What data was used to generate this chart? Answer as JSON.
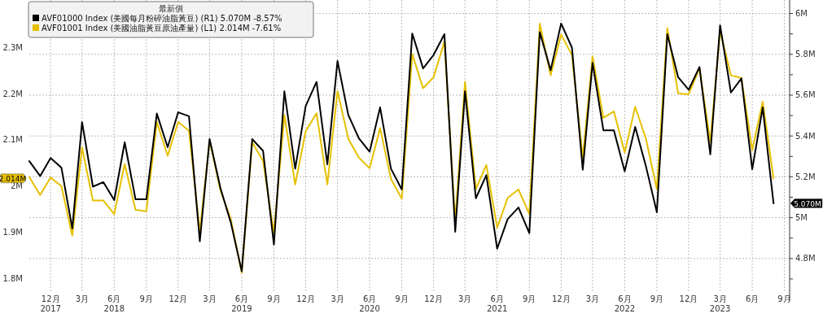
{
  "chart_data": {
    "type": "line",
    "legend_title": "最新價",
    "annotations": [
      "5.070M",
      "2.014M"
    ],
    "x": [
      "2017-10",
      "2017-11",
      "2017-12",
      "2018-01",
      "2018-02",
      "2018-03",
      "2018-04",
      "2018-05",
      "2018-06",
      "2018-07",
      "2018-08",
      "2018-09",
      "2018-10",
      "2018-11",
      "2018-12",
      "2019-01",
      "2019-02",
      "2019-03",
      "2019-04",
      "2019-05",
      "2019-06",
      "2019-07",
      "2019-08",
      "2019-09",
      "2019-10",
      "2019-11",
      "2019-12",
      "2020-01",
      "2020-02",
      "2020-03",
      "2020-04",
      "2020-05",
      "2020-06",
      "2020-07",
      "2020-08",
      "2020-09",
      "2020-10",
      "2020-11",
      "2020-12",
      "2021-01",
      "2021-02",
      "2021-03",
      "2021-04",
      "2021-05",
      "2021-06",
      "2021-07",
      "2021-08",
      "2021-09",
      "2021-10",
      "2021-11",
      "2021-12",
      "2022-01",
      "2022-02",
      "2022-03",
      "2022-04",
      "2022-05",
      "2022-06",
      "2022-07",
      "2022-08",
      "2022-09",
      "2022-10",
      "2022-11",
      "2022-12",
      "2023-01",
      "2023-02",
      "2023-03",
      "2023-04",
      "2023-05",
      "2023-06",
      "2023-07",
      "2023-08"
    ],
    "series": [
      {
        "name": "AVF01000 Index (美國每月粉碎油脂黃豆) (R1) 5.070M -8.57%",
        "color": "#000000",
        "axis": "y2",
        "values": [
          5.277,
          5.204,
          5.292,
          5.244,
          4.947,
          5.468,
          5.152,
          5.174,
          5.086,
          5.369,
          5.09,
          5.09,
          5.51,
          5.345,
          5.516,
          5.497,
          4.884,
          5.385,
          5.145,
          4.974,
          4.737,
          5.385,
          5.327,
          4.868,
          5.619,
          5.24,
          5.547,
          5.665,
          5.261,
          5.767,
          5.503,
          5.389,
          5.323,
          5.54,
          5.24,
          5.138,
          5.902,
          5.731,
          5.797,
          5.899,
          4.931,
          5.619,
          5.095,
          5.208,
          4.848,
          4.993,
          5.05,
          4.924,
          5.909,
          5.722,
          5.951,
          5.833,
          5.235,
          5.758,
          5.428,
          5.428,
          5.227,
          5.445,
          5.25,
          5.026,
          5.899,
          5.688,
          5.626,
          5.738,
          5.31,
          5.942,
          5.613,
          5.682,
          5.237,
          5.54,
          5.07
        ]
      },
      {
        "name": "AVF01001 Index (美國油脂黃豆原油產量) (L1) 2.014M -7.61%",
        "color": "#e6c000",
        "values": [
          2.017,
          1.978,
          2.016,
          1.997,
          1.89,
          2.081,
          1.966,
          1.966,
          1.937,
          2.045,
          1.946,
          1.943,
          2.136,
          2.063,
          2.136,
          2.117,
          1.899,
          2.096,
          1.988,
          1.925,
          1.81,
          2.092,
          2.052,
          1.896,
          2.151,
          2.001,
          2.116,
          2.155,
          2.001,
          2.203,
          2.1,
          2.059,
          2.036,
          2.123,
          2.013,
          1.97,
          2.283,
          2.209,
          2.233,
          2.31,
          1.922,
          2.223,
          1.991,
          2.043,
          1.907,
          1.972,
          1.99,
          1.937,
          2.349,
          2.237,
          2.325,
          2.281,
          2.058,
          2.278,
          2.145,
          2.159,
          2.07,
          2.169,
          2.099,
          1.991,
          2.339,
          2.198,
          2.196,
          2.252,
          2.093,
          2.333,
          2.237,
          2.231,
          2.075,
          2.18,
          2.014
        ]
      }
    ],
    "xlim": [
      "2017-10-01",
      "2023-09-16"
    ],
    "xticks": [
      {
        "value": "2017-12",
        "label": "12月\n2017"
      },
      {
        "value": "2018-03",
        "label": "3月"
      },
      {
        "value": "2018-06",
        "label": "6月\n2018"
      },
      {
        "value": "2018-09",
        "label": "9月"
      },
      {
        "value": "2018-12",
        "label": "12月"
      },
      {
        "value": "2019-03",
        "label": "3月"
      },
      {
        "value": "2019-06",
        "label": "6月\n2019"
      },
      {
        "value": "2019-09",
        "label": "9月"
      },
      {
        "value": "2019-12",
        "label": "12月"
      },
      {
        "value": "2020-03",
        "label": "3月"
      },
      {
        "value": "2020-06",
        "label": "6月\n2020"
      },
      {
        "value": "2020-09",
        "label": "9月"
      },
      {
        "value": "2020-12",
        "label": "12月"
      },
      {
        "value": "2021-03",
        "label": "3月"
      },
      {
        "value": "2021-06",
        "label": "6月\n2021"
      },
      {
        "value": "2021-09",
        "label": "9月"
      },
      {
        "value": "2021-12",
        "label": "12月"
      },
      {
        "value": "2022-03",
        "label": "3月"
      },
      {
        "value": "2022-06",
        "label": "6月\n2022"
      },
      {
        "value": "2022-09",
        "label": "9月"
      },
      {
        "value": "2022-12",
        "label": "12月"
      },
      {
        "value": "2023-03",
        "label": "3月\n2023"
      },
      {
        "value": "2023-06",
        "label": "6月"
      },
      {
        "value": "2023-09",
        "label": "9月"
      }
    ],
    "ylim": [
      1.77,
      2.4
    ],
    "yticks": [
      {
        "value": 1.8,
        "label": "1.8M"
      },
      {
        "value": 1.9,
        "label": "1.9M"
      },
      {
        "value": 2,
        "label": "2M"
      },
      {
        "value": 2.1,
        "label": "2.1M"
      },
      {
        "value": 2.2,
        "label": "2.2M"
      },
      {
        "value": 2.3,
        "label": "2.3M"
      }
    ],
    "y2lim": [
      4.64,
      6.066
    ],
    "y2ticks": [
      {
        "value": 4.7,
        "label": null
      },
      {
        "value": 4.8,
        "label": "4.8M"
      },
      {
        "value": 4.9,
        "label": null
      },
      {
        "value": 5,
        "label": "5M"
      },
      {
        "value": 5.1,
        "label": null
      },
      {
        "value": 5.2,
        "label": "5.2M"
      },
      {
        "value": 5.3,
        "label": null
      },
      {
        "value": 5.4,
        "label": "5.4M"
      },
      {
        "value": 5.5,
        "label": null
      },
      {
        "value": 5.6,
        "label": "5.6M"
      },
      {
        "value": 5.7,
        "label": null
      },
      {
        "value": 5.8,
        "label": "5.8M"
      },
      {
        "value": 5.9,
        "label": null
      },
      {
        "value": 6,
        "label": "6M"
      }
    ],
    "grid": true,
    "legend": "top left"
  }
}
